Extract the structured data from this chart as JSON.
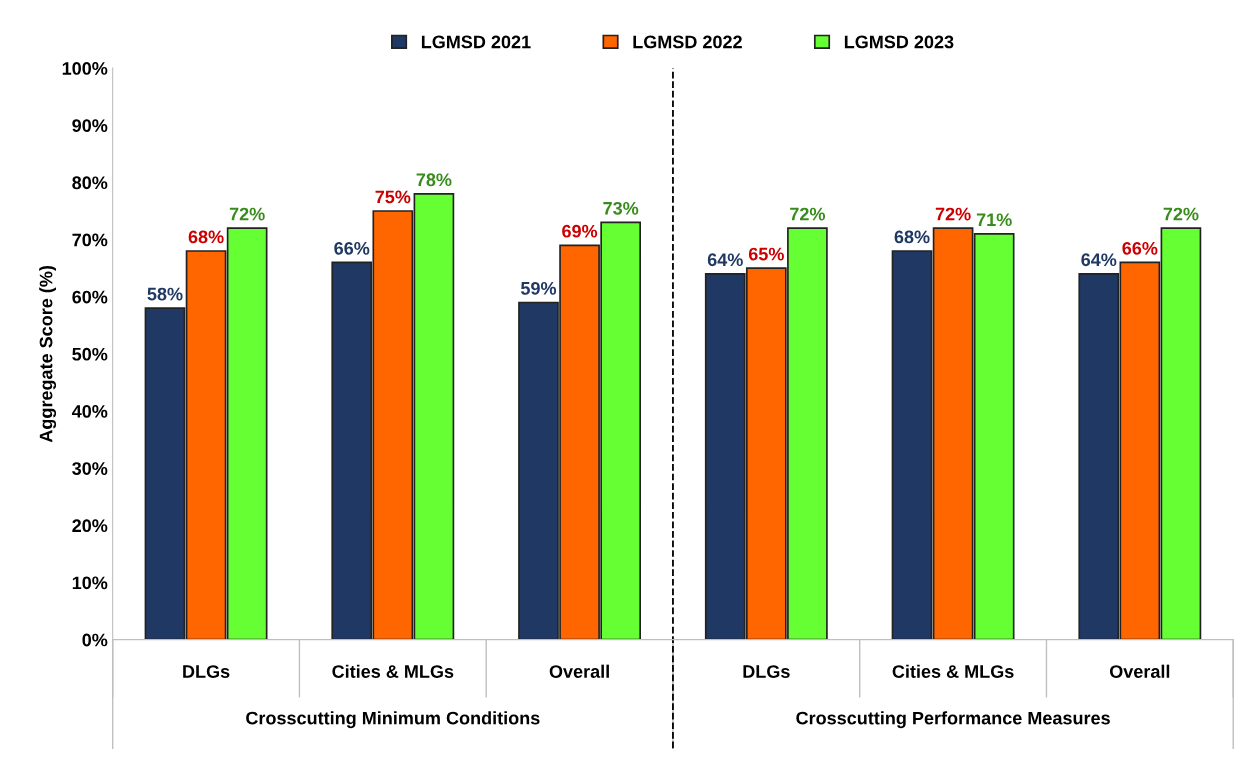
{
  "chart_data": {
    "type": "bar",
    "categories": [
      "DLGs",
      "Cities & MLGs",
      "Overall",
      "DLGs",
      "Cities & MLGs",
      "Overall"
    ],
    "series": [
      {
        "name": "LGMSD 2021",
        "color": "#1f3864",
        "values": [
          58,
          66,
          59,
          64,
          68,
          64
        ]
      },
      {
        "name": "LGMSD 2022",
        "color": "#ff6600",
        "values": [
          68,
          75,
          69,
          65,
          72,
          66
        ]
      },
      {
        "name": "LGMSD 2023",
        "color": "#66ff33",
        "values": [
          72,
          78,
          73,
          72,
          71,
          72
        ]
      }
    ],
    "ylabel": "Aggregate Score (%)",
    "ylim": [
      0,
      100
    ],
    "yticks": [
      {
        "value": 0,
        "label": "0%"
      },
      {
        "value": 10,
        "label": "10%"
      },
      {
        "value": 20,
        "label": "20%"
      },
      {
        "value": 30,
        "label": "30%"
      },
      {
        "value": 40,
        "label": "40%"
      },
      {
        "value": 50,
        "label": "50%"
      },
      {
        "value": 60,
        "label": "60%"
      },
      {
        "value": 70,
        "label": "70%"
      },
      {
        "value": 80,
        "label": "80%"
      },
      {
        "value": 90,
        "label": "90%"
      },
      {
        "value": 100,
        "label": "100%"
      }
    ],
    "value_labels": [
      [
        "58%",
        "66%",
        "59%",
        "64%",
        "68%",
        "64%"
      ],
      [
        "68%",
        "75%",
        "69%",
        "65%",
        "72%",
        "66%"
      ],
      [
        "72%",
        "78%",
        "73%",
        "72%",
        "71%",
        "72%"
      ]
    ],
    "annotations": [
      "Crosscutting Minimum Conditions",
      "Crosscutting Performance Measures"
    ],
    "legend": "top",
    "grid": false
  }
}
